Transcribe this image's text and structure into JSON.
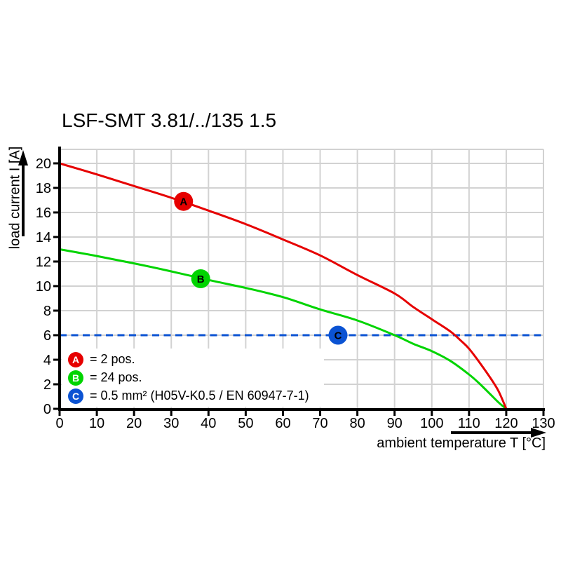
{
  "chart_data": {
    "type": "line",
    "title": "LSF-SMT 3.81/../135 1.5",
    "xlabel": "ambient temperature T [°C]",
    "ylabel": "load current I [A]",
    "xlim": [
      0,
      130
    ],
    "ylim": [
      0,
      21.14
    ],
    "xticks": [
      0,
      10,
      20,
      30,
      40,
      50,
      60,
      70,
      80,
      90,
      100,
      110,
      120,
      130
    ],
    "yticks": [
      0,
      2,
      4,
      6,
      8,
      10,
      12,
      14,
      16,
      18,
      20
    ],
    "grid": true,
    "legend_position": "inside-bottom-left",
    "series": [
      {
        "id": "A",
        "legend_label": "= 2 pos.",
        "color": "#e60000",
        "style": "solid",
        "marker_at": [
          33.3,
          16.9
        ],
        "points": [
          [
            0,
            20
          ],
          [
            10,
            19.1
          ],
          [
            20,
            18.15
          ],
          [
            30,
            17.2
          ],
          [
            40,
            16.15
          ],
          [
            50,
            15.05
          ],
          [
            60,
            13.8
          ],
          [
            70,
            12.5
          ],
          [
            80,
            10.9
          ],
          [
            90,
            9.4
          ],
          [
            95,
            8.3
          ],
          [
            100,
            7.3
          ],
          [
            105,
            6.3
          ],
          [
            108,
            5.5
          ],
          [
            110,
            4.9
          ],
          [
            113,
            3.7
          ],
          [
            116,
            2.4
          ],
          [
            118,
            1.4
          ],
          [
            120,
            0
          ]
        ]
      },
      {
        "id": "B",
        "legend_label": "= 24 pos.",
        "color": "#00d400",
        "style": "solid",
        "marker_at": [
          37.9,
          10.6
        ],
        "points": [
          [
            0,
            13
          ],
          [
            10,
            12.45
          ],
          [
            20,
            11.85
          ],
          [
            30,
            11.2
          ],
          [
            40,
            10.5
          ],
          [
            50,
            9.85
          ],
          [
            60,
            9.1
          ],
          [
            70,
            8.1
          ],
          [
            80,
            7.2
          ],
          [
            90,
            6.0
          ],
          [
            95,
            5.3
          ],
          [
            100,
            4.7
          ],
          [
            105,
            3.9
          ],
          [
            110,
            2.8
          ],
          [
            113,
            2.0
          ],
          [
            116,
            1.1
          ],
          [
            118,
            0.5
          ],
          [
            120,
            0
          ]
        ]
      },
      {
        "id": "C",
        "legend_label": "= 0.5 mm² (H05V-K0.5 / EN 60947-7-1)",
        "color": "#0b53d3",
        "style": "dashed",
        "marker_at": [
          74.8,
          6
        ],
        "points": [
          [
            0,
            6
          ],
          [
            130,
            6
          ]
        ]
      }
    ]
  }
}
